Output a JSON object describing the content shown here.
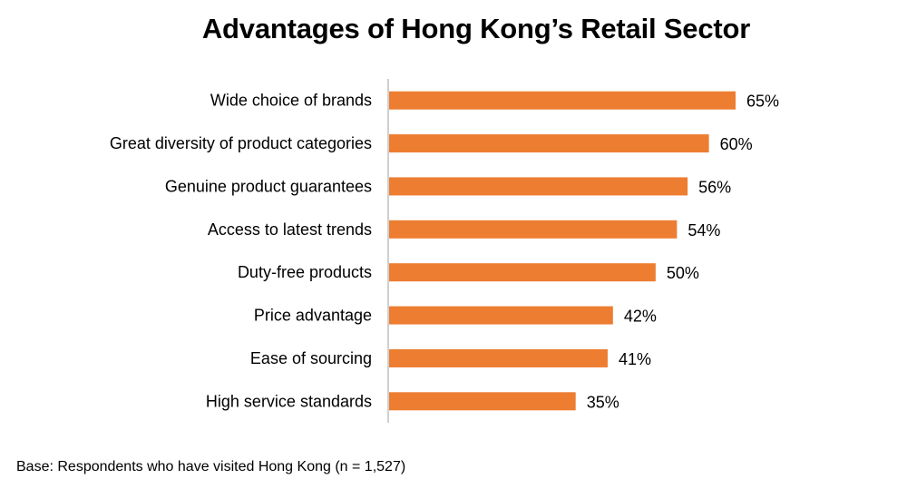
{
  "chart_data": {
    "type": "bar",
    "orientation": "horizontal",
    "title": "Advantages of Hong Kong’s Retail Sector",
    "xlabel": "",
    "ylabel": "",
    "xlim": [
      0,
      65
    ],
    "grid": false,
    "bar_color": "#ED7D31",
    "axis_color": "#BFBFBF",
    "categories": [
      "Wide choice of brands",
      "Great diversity of product categories",
      "Genuine product guarantees",
      "Access to latest trends",
      "Duty-free products",
      "Price advantage",
      "Ease of sourcing",
      "High service standards"
    ],
    "values": [
      65,
      60,
      56,
      54,
      50,
      42,
      41,
      35
    ],
    "data_labels": [
      "65%",
      "60%",
      "56%",
      "54%",
      "50%",
      "42%",
      "41%",
      "35%"
    ]
  },
  "footnote": "Base: Respondents who have visited Hong Kong (n = 1,527)"
}
